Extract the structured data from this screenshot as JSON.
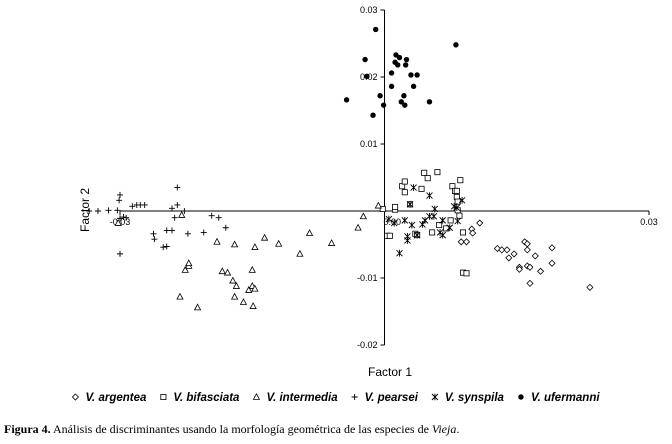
{
  "chart_data": {
    "type": "scatter",
    "xlabel": "Factor 1",
    "ylabel": "Factor 2",
    "xlim": [
      -0.03,
      0.03
    ],
    "ylim": [
      -0.02,
      0.03
    ],
    "x_ticks": [
      {
        "value": -0.03,
        "label": "-0.03"
      },
      {
        "value": 0.0,
        "label": "0.00"
      },
      {
        "value": 0.03,
        "label": "0.03"
      }
    ],
    "y_ticks": [
      {
        "value": 0.03,
        "label": "0.03"
      },
      {
        "value": 0.02,
        "label": "0.02"
      },
      {
        "value": 0.01,
        "label": "0.01"
      },
      {
        "value": 0.0,
        "label": "0.00"
      },
      {
        "value": -0.01,
        "label": "-0.01"
      },
      {
        "value": -0.02,
        "label": "-0.02"
      }
    ],
    "legend_position": "bottom",
    "series": [
      {
        "name": "V. argentea",
        "marker": "diamond",
        "points": [
          [
            0.0087,
            -0.0046
          ],
          [
            0.0093,
            -0.0046
          ],
          [
            0.0099,
            -0.0027
          ],
          [
            0.01,
            -0.0033
          ],
          [
            0.0108,
            -0.0018
          ],
          [
            0.0128,
            -0.0056
          ],
          [
            0.0133,
            -0.0058
          ],
          [
            0.0139,
            -0.0058
          ],
          [
            0.0141,
            -0.007
          ],
          [
            0.0147,
            -0.0064
          ],
          [
            0.0153,
            -0.0084
          ],
          [
            0.0153,
            -0.0087
          ],
          [
            0.0159,
            -0.0046
          ],
          [
            0.0162,
            -0.0049
          ],
          [
            0.0162,
            -0.0058
          ],
          [
            0.0162,
            -0.0082
          ],
          [
            0.0165,
            -0.0084
          ],
          [
            0.0165,
            -0.0108
          ],
          [
            0.0171,
            -0.0067
          ],
          [
            0.0177,
            -0.009
          ],
          [
            0.019,
            -0.0055
          ],
          [
            0.019,
            -0.0078
          ],
          [
            0.0233,
            -0.0114
          ]
        ]
      },
      {
        "name": "V. bifasciata",
        "marker": "square",
        "points": [
          [
            -0.0002,
            0.0003
          ],
          [
            0.0003,
            -0.0037
          ],
          [
            0.0006,
            -0.0037
          ],
          [
            0.0012,
            0.0002
          ],
          [
            0.0012,
            0.0006
          ],
          [
            0.002,
            0.0037
          ],
          [
            0.0023,
            0.0044
          ],
          [
            0.0023,
            0.0028
          ],
          [
            0.0029,
            0.001
          ],
          [
            0.0035,
            -0.0034
          ],
          [
            0.0037,
            -0.0036
          ],
          [
            0.0042,
            0.0033
          ],
          [
            0.0045,
            0.0057
          ],
          [
            0.0049,
            0.0049
          ],
          [
            0.0054,
            -0.0032
          ],
          [
            0.006,
            0.0058
          ],
          [
            0.0062,
            -0.0021
          ],
          [
            0.007,
            -0.0026
          ],
          [
            0.0075,
            -0.0014
          ],
          [
            0.0077,
            0.0037
          ],
          [
            0.008,
            0.003
          ],
          [
            0.0082,
            0.003
          ],
          [
            0.0082,
            0.0021
          ],
          [
            0.0083,
            0.0014
          ],
          [
            0.0083,
            0.0001
          ],
          [
            0.0085,
            -0.0007
          ],
          [
            0.0086,
            0.0046
          ],
          [
            0.0089,
            -0.0092
          ],
          [
            0.0089,
            -0.0032
          ],
          [
            0.0093,
            -0.0093
          ]
        ]
      },
      {
        "name": "V. intermedia",
        "marker": "triangle",
        "points": [
          [
            -0.0232,
            -0.0128
          ],
          [
            -0.0226,
            -0.0088
          ],
          [
            -0.0222,
            -0.0082
          ],
          [
            -0.0222,
            -0.0078
          ],
          [
            -0.0212,
            -0.0144
          ],
          [
            -0.019,
            -0.0046
          ],
          [
            -0.0184,
            -0.009
          ],
          [
            -0.0178,
            -0.0092
          ],
          [
            -0.0172,
            -0.0104
          ],
          [
            -0.017,
            -0.0128
          ],
          [
            -0.0168,
            -0.0112
          ],
          [
            -0.016,
            -0.0136
          ],
          [
            -0.0154,
            -0.0118
          ],
          [
            -0.015,
            -0.0088
          ],
          [
            -0.015,
            -0.0112
          ],
          [
            -0.0149,
            -0.0142
          ],
          [
            -0.0147,
            -0.0116
          ],
          [
            -0.0147,
            -0.0054
          ],
          [
            -0.0136,
            -0.004
          ],
          [
            -0.012,
            -0.0049
          ],
          [
            -0.0096,
            -0.0064
          ],
          [
            -0.006,
            -0.0048
          ],
          [
            -0.003,
            -0.0025
          ],
          [
            -0.0024,
            -0.0008
          ],
          [
            -0.0007,
            0.0008
          ],
          [
            -0.0302,
            -0.0018
          ],
          [
            -0.023,
            -0.0006
          ],
          [
            -0.017,
            -0.005
          ],
          [
            -0.0085,
            -0.0033
          ]
        ]
      },
      {
        "name": "V. pearsei",
        "marker": "plus",
        "points": [
          [
            -0.0335,
            0.0
          ],
          [
            -0.0325,
            0.0
          ],
          [
            -0.0313,
            0.0001
          ],
          [
            -0.0303,
            0.0001
          ],
          [
            -0.0301,
            0.0016
          ],
          [
            -0.03,
            0.0024
          ],
          [
            -0.03,
            -0.0011
          ],
          [
            -0.03,
            -0.0064
          ],
          [
            -0.0296,
            -0.0009
          ],
          [
            -0.0293,
            -0.001
          ],
          [
            -0.0286,
            0.0007
          ],
          [
            -0.0281,
            0.0009
          ],
          [
            -0.0277,
            0.0009
          ],
          [
            -0.0272,
            0.0009
          ],
          [
            -0.0262,
            -0.0034
          ],
          [
            -0.0261,
            -0.0042
          ],
          [
            -0.0251,
            -0.0054
          ],
          [
            -0.0247,
            -0.0029
          ],
          [
            -0.0247,
            -0.0053
          ],
          [
            -0.0241,
            -0.0029
          ],
          [
            -0.0241,
            0.0004
          ],
          [
            -0.0238,
            -0.001
          ],
          [
            -0.0235,
            0.0009
          ],
          [
            -0.0235,
            0.0035
          ],
          [
            -0.0223,
            -0.0034
          ],
          [
            -0.0227,
            0.0
          ],
          [
            -0.0205,
            -0.0032
          ],
          [
            -0.0196,
            -0.0007
          ],
          [
            -0.0188,
            -0.001
          ],
          [
            -0.018,
            -0.0025
          ]
        ]
      },
      {
        "name": "V. synspila",
        "marker": "asterisk",
        "points": [
          [
            0.0005,
            -0.0012
          ],
          [
            0.0011,
            -0.0018
          ],
          [
            0.0017,
            -0.0063
          ],
          [
            0.0023,
            -0.0014
          ],
          [
            0.0026,
            -0.0038
          ],
          [
            0.0026,
            -0.0044
          ],
          [
            0.0029,
            0.001
          ],
          [
            0.0031,
            -0.0021
          ],
          [
            0.0033,
            0.0035
          ],
          [
            0.0037,
            -0.0036
          ],
          [
            0.0043,
            -0.002
          ],
          [
            0.0046,
            -0.0014
          ],
          [
            0.0051,
            0.0023
          ],
          [
            0.0051,
            -0.0008
          ],
          [
            0.0056,
            -0.0008
          ],
          [
            0.0057,
            0.0003
          ],
          [
            0.0063,
            -0.0032
          ],
          [
            0.0066,
            -0.0014
          ],
          [
            0.0066,
            -0.0036
          ],
          [
            0.0074,
            -0.0025
          ],
          [
            0.0079,
            0.0007
          ],
          [
            0.0082,
            0.0005
          ],
          [
            0.0083,
            -0.0015
          ],
          [
            0.0088,
            0.0016
          ]
        ]
      },
      {
        "name": "V. ufermanni",
        "marker": "circle",
        "points": [
          [
            -0.0043,
            0.0166
          ],
          [
            -0.0022,
            0.0226
          ],
          [
            -0.002,
            0.0201
          ],
          [
            -0.0013,
            0.0143
          ],
          [
            -0.001,
            0.0271
          ],
          [
            -0.0005,
            0.0172
          ],
          [
            -0.0001,
            0.0158
          ],
          [
            0.0008,
            0.0206
          ],
          [
            0.0008,
            0.0186
          ],
          [
            0.0012,
            0.0222
          ],
          [
            0.0013,
            0.0233
          ],
          [
            0.0015,
            0.0218
          ],
          [
            0.0017,
            0.0229
          ],
          [
            0.0019,
            0.0163
          ],
          [
            0.0022,
            0.0172
          ],
          [
            0.0023,
            0.0158
          ],
          [
            0.0024,
            0.0218
          ],
          [
            0.0025,
            0.0226
          ],
          [
            0.003,
            0.0203
          ],
          [
            0.0033,
            0.0186
          ],
          [
            0.0037,
            0.0203
          ],
          [
            0.0051,
            0.0163
          ],
          [
            0.0081,
            0.0248
          ]
        ]
      }
    ]
  },
  "caption": {
    "label": "Figura 4.",
    "text": "Análisis de discriminantes usando la morfología geométrica de las especies de",
    "genus": "Vieja",
    "end": "."
  }
}
